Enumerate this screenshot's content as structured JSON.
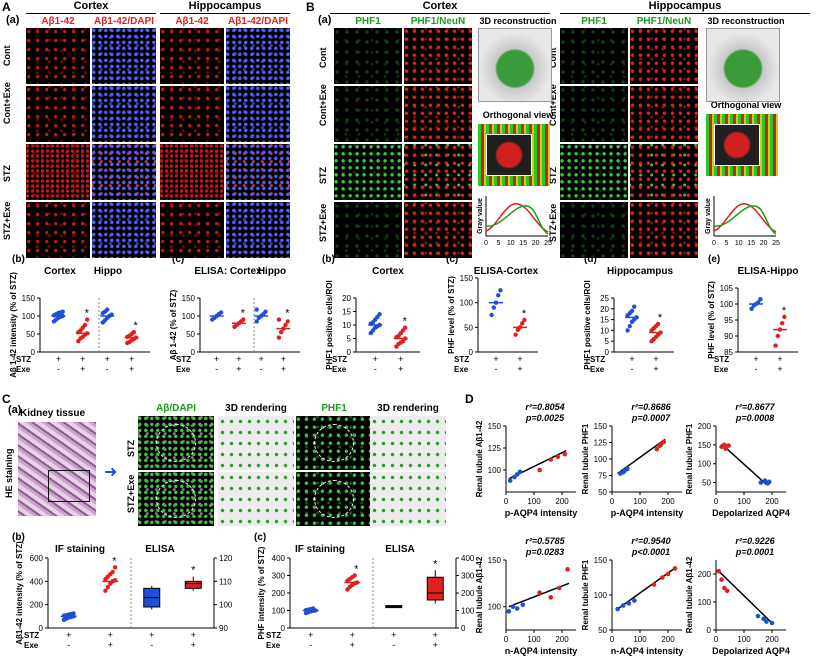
{
  "panel_A": {
    "letter": "A",
    "sub": "(a)",
    "region_cortex": "Cortex",
    "region_hippo": "Hippocampus",
    "col_titles": [
      "Aβ1-42",
      "Aβ1-42/DAPI",
      "Aβ1-42",
      "Aβ1-42/DAPI"
    ],
    "row_labels": [
      "Cont",
      "Cont+Exe",
      "STZ",
      "STZ+Exe"
    ]
  },
  "panel_B": {
    "letter": "B",
    "sub": "(a)",
    "region_cortex": "Cortex",
    "region_hippo": "Hippocampus",
    "col_titles": [
      "PHF1",
      "PHF1/NeuN",
      "PHF1",
      "PHF1/NeuN"
    ],
    "recon_title": "3D reconstruction",
    "ortho_title": "Orthogonal view",
    "row_labels": [
      "Cont",
      "Cont+Exe",
      "STZ",
      "STZ+Exe"
    ],
    "gray_label": "Gray value",
    "gray_ticks": [
      "0",
      "5",
      "10",
      "15",
      "20",
      "25"
    ]
  },
  "panel_C": {
    "letter": "C",
    "sub": "(a)",
    "kidney_label": "Kidney tissue",
    "he_label": "HE staining",
    "col_titles": [
      "Aβ/DAPI",
      "3D rendering",
      "PHF1",
      "3D rendering"
    ],
    "row_labels": [
      "STZ",
      "STZ+Exe"
    ]
  },
  "panel_D": {
    "letter": "D"
  },
  "group_rows": {
    "stz": "STZ",
    "exe": "Exe",
    "plus": "+",
    "minus": "-"
  },
  "chart_data": [
    {
      "id": "Ab_b",
      "type": "scatter",
      "panel": "(b)",
      "headers": [
        "Cortex",
        "Hippo"
      ],
      "ylabel": "Aβ 1-42 intensity (% of STZ)",
      "ylim": [
        0,
        150
      ],
      "yticks": [
        "0",
        "50",
        "100",
        "150"
      ],
      "groups": [
        {
          "stz": "+",
          "exe": "-",
          "color": "#1f4fd6",
          "mean": 100,
          "points": [
            85,
            90,
            95,
            98,
            100,
            102,
            105,
            108,
            110,
            112
          ]
        },
        {
          "stz": "+",
          "exe": "+",
          "color": "#e02020",
          "mean": 52,
          "points": [
            30,
            38,
            42,
            48,
            52,
            55,
            60,
            68,
            75,
            90
          ],
          "star": true
        },
        {
          "stz": "+",
          "exe": "-",
          "color": "#1f4fd6",
          "mean": 100,
          "points": [
            82,
            88,
            95,
            100,
            104,
            108,
            112,
            118
          ]
        },
        {
          "stz": "+",
          "exe": "+",
          "color": "#e02020",
          "mean": 40,
          "points": [
            25,
            28,
            32,
            36,
            40,
            42,
            45,
            50,
            55
          ],
          "star": true
        }
      ]
    },
    {
      "id": "Ab_c",
      "type": "scatter",
      "panel": "(c)",
      "headers": [
        "ELISA: Cortex",
        "Hippo"
      ],
      "ylabel": "Aβ 1-42 (% of STZ)",
      "ylim": [
        0,
        150
      ],
      "yticks": [
        "0",
        "50",
        "100",
        "150"
      ],
      "groups": [
        {
          "stz": "+",
          "exe": "-",
          "color": "#1f4fd6",
          "mean": 100,
          "points": [
            90,
            95,
            100,
            105,
            110
          ]
        },
        {
          "stz": "+",
          "exe": "+",
          "color": "#e02020",
          "mean": 80,
          "points": [
            70,
            75,
            80,
            85,
            90
          ],
          "star": true
        },
        {
          "stz": "+",
          "exe": "-",
          "color": "#1f4fd6",
          "mean": 100,
          "points": [
            85,
            95,
            100,
            105,
            112,
            118
          ]
        },
        {
          "stz": "+",
          "exe": "+",
          "color": "#e02020",
          "mean": 65,
          "points": [
            40,
            55,
            65,
            75,
            85,
            90
          ],
          "star": true
        }
      ]
    },
    {
      "id": "PHF_b",
      "type": "scatter",
      "panel": "(b)",
      "headers": [
        "Cortex"
      ],
      "ylabel": "PHF1 positive cells/ROI",
      "ylim": [
        0,
        20
      ],
      "yticks": [
        "0",
        "5",
        "10",
        "15",
        "20"
      ],
      "groups": [
        {
          "stz": "+",
          "exe": "-",
          "color": "#1f4fd6",
          "mean": 10,
          "points": [
            7,
            8,
            9,
            9.5,
            10,
            10.5,
            11,
            12,
            13,
            14
          ]
        },
        {
          "stz": "+",
          "exe": "+",
          "color": "#e02020",
          "mean": 5,
          "points": [
            2,
            3,
            3.5,
            4,
            5,
            5.5,
            6,
            7,
            8,
            9
          ],
          "star": true
        }
      ]
    },
    {
      "id": "PHF_c",
      "type": "scatter",
      "panel": "(c)",
      "headers": [
        "ELISA-Cortex"
      ],
      "ylabel": "PHF level (% of STZ)",
      "ylim": [
        0,
        150
      ],
      "yticks": [
        "0",
        "50",
        "100",
        "150"
      ],
      "groups": [
        {
          "stz": "+",
          "exe": "-",
          "color": "#1f4fd6",
          "mean": 100,
          "points": [
            75,
            90,
            100,
            115,
            125
          ]
        },
        {
          "stz": "+",
          "exe": "+",
          "color": "#e02020",
          "mean": 50,
          "points": [
            35,
            45,
            50,
            58,
            65
          ],
          "star": true
        }
      ]
    },
    {
      "id": "PHF_d",
      "type": "scatter",
      "panel": "(d)",
      "headers": [
        "Hippocampus"
      ],
      "ylabel": "PHF1 positive cells/ROI",
      "ylim": [
        0,
        25
      ],
      "yticks": [
        "0",
        "5",
        "10",
        "15",
        "20",
        "25"
      ],
      "groups": [
        {
          "stz": "+",
          "exe": "-",
          "color": "#1f4fd6",
          "mean": 16,
          "points": [
            10,
            12,
            14,
            15,
            16,
            17,
            18,
            19,
            21
          ]
        },
        {
          "stz": "+",
          "exe": "+",
          "color": "#e02020",
          "mean": 9,
          "points": [
            5,
            6,
            7,
            8,
            9,
            10,
            11,
            12,
            13
          ],
          "star": true
        }
      ]
    },
    {
      "id": "PHF_e",
      "type": "scatter",
      "panel": "(e)",
      "headers": [
        "ELISA-Hippo"
      ],
      "ylabel": "PHF level (% of STZ)",
      "ylim": [
        85,
        105
      ],
      "yticks": [
        "85",
        "90",
        "95",
        "100",
        "105"
      ],
      "groups": [
        {
          "stz": "+",
          "exe": "-",
          "color": "#1f4fd6",
          "mean": 100,
          "points": [
            98.5,
            99.5,
            100,
            100.5,
            101.5
          ]
        },
        {
          "stz": "+",
          "exe": "+",
          "color": "#e02020",
          "mean": 92,
          "points": [
            87,
            90,
            92,
            94,
            96
          ],
          "star": true
        }
      ]
    },
    {
      "id": "C_b",
      "type": "scatter+box",
      "panel": "(b)",
      "headers": [
        "IF staining",
        "ELISA"
      ],
      "ylabel": "Aβ1-42 intensity (% of STZ)",
      "ylim": [
        0,
        600
      ],
      "yticks": [
        "0",
        "200",
        "400",
        "600"
      ],
      "y2lim": [
        90,
        120
      ],
      "y2ticks": [
        "90",
        "100",
        "110",
        "120"
      ],
      "scatter": [
        {
          "stz": "+",
          "exe": "-",
          "color": "#1f4fd6",
          "mean": 100,
          "points": [
            70,
            80,
            90,
            95,
            100,
            105,
            110,
            115,
            120,
            125
          ]
        },
        {
          "stz": "+",
          "exe": "+",
          "color": "#e02020",
          "mean": 400,
          "points": [
            320,
            350,
            380,
            400,
            410,
            420,
            440,
            460,
            480,
            520
          ],
          "star": true
        }
      ],
      "boxes": [
        {
          "stz": "+",
          "exe": "-",
          "color": "#1f4fd6",
          "min": 98,
          "q1": 99,
          "median": 103,
          "q3": 107,
          "max": 108
        },
        {
          "stz": "+",
          "exe": "+",
          "color": "#e02020",
          "min": 106,
          "q1": 107,
          "median": 109,
          "q3": 110,
          "max": 112,
          "star": true
        }
      ]
    },
    {
      "id": "C_c",
      "type": "scatter+box",
      "panel": "(c)",
      "headers": [
        "IF staining",
        "ELISA"
      ],
      "ylabel": "PHF intensity (% of STZ)",
      "ylim": [
        0,
        400
      ],
      "yticks": [
        "0",
        "100",
        "200",
        "300",
        "400"
      ],
      "y2lim": [
        0,
        400
      ],
      "y2ticks": [
        "0",
        "100",
        "200",
        "300",
        "400"
      ],
      "scatter": [
        {
          "stz": "+",
          "exe": "-",
          "color": "#1f4fd6",
          "mean": 100,
          "points": [
            85,
            90,
            95,
            98,
            100,
            102,
            105,
            108,
            112
          ]
        },
        {
          "stz": "+",
          "exe": "+",
          "color": "#e02020",
          "mean": 260,
          "points": [
            220,
            235,
            245,
            255,
            260,
            270,
            280,
            290,
            300
          ],
          "star": true
        }
      ],
      "boxes": [
        {
          "stz": "+",
          "exe": "-",
          "color": "#1f4fd6",
          "min": 115,
          "q1": 118,
          "median": 122,
          "q3": 128,
          "max": 132
        },
        {
          "stz": "+",
          "exe": "+",
          "color": "#e02020",
          "min": 140,
          "q1": 160,
          "median": 200,
          "q3": 290,
          "max": 330,
          "star": true
        }
      ]
    },
    {
      "id": "D1",
      "type": "scatter",
      "r2": "r²=0.8054",
      "p": "p=0.0025",
      "xlabel": "p-AQP4 intensity",
      "ylabel": "Renal tubule Aβ1-42",
      "xlim": [
        0,
        250
      ],
      "ylim": [
        75,
        150
      ],
      "xticks": [
        "0",
        "100",
        "200"
      ],
      "yticks": [
        "100",
        "125",
        "150"
      ],
      "line": [
        [
          10,
          90
        ],
        [
          215,
          122
        ]
      ],
      "points_blue": [
        [
          15,
          88
        ],
        [
          30,
          92
        ],
        [
          40,
          95
        ],
        [
          50,
          98
        ]
      ],
      "points_red": [
        [
          120,
          100
        ],
        [
          160,
          112
        ],
        [
          185,
          115
        ],
        [
          210,
          118
        ]
      ]
    },
    {
      "id": "D2",
      "type": "scatter",
      "r2": "r²=0.8686",
      "p": "p=0.0007",
      "xlabel": "p-AQP4 intensity",
      "ylabel": "Renal tubule PHF1",
      "xlim": [
        0,
        250
      ],
      "ylim": [
        50,
        150
      ],
      "xticks": [
        "0",
        "100",
        "200"
      ],
      "yticks": [
        "50",
        "75",
        "100",
        "125",
        "150"
      ],
      "line": [
        [
          20,
          78
        ],
        [
          190,
          130
        ]
      ],
      "points_blue": [
        [
          30,
          78
        ],
        [
          40,
          80
        ],
        [
          45,
          82
        ],
        [
          55,
          85
        ]
      ],
      "points_red": [
        [
          160,
          115
        ],
        [
          170,
          120
        ],
        [
          175,
          122
        ],
        [
          185,
          126
        ]
      ]
    },
    {
      "id": "D3",
      "type": "scatter",
      "r2": "r²=0.8677",
      "p": "p=0.0008",
      "xlabel": "Depolarized AQP4",
      "ylabel": "Renal tubule PHF1",
      "xlim": [
        0,
        250
      ],
      "ylim": [
        25,
        200
      ],
      "xticks": [
        "0",
        "100",
        "200"
      ],
      "yticks": [
        "50",
        "100",
        "150",
        "200"
      ],
      "line": [
        [
          20,
          152
        ],
        [
          180,
          45
        ]
      ],
      "points_blue": [
        [
          160,
          50
        ],
        [
          175,
          55
        ],
        [
          185,
          48
        ],
        [
          190,
          52
        ]
      ],
      "points_red": [
        [
          20,
          145
        ],
        [
          30,
          150
        ],
        [
          35,
          140
        ],
        [
          45,
          148
        ]
      ]
    },
    {
      "id": "D4",
      "type": "scatter",
      "r2": "r²=0.5785",
      "p": "p=0.0283",
      "xlabel": "n-AQP4 intensity",
      "ylabel": "Renal tubule Aβ1-42",
      "xlim": [
        0,
        250
      ],
      "ylim": [
        75,
        150
      ],
      "xticks": [
        "0",
        "100",
        "200"
      ],
      "yticks": [
        "100",
        "150"
      ],
      "line": [
        [
          10,
          100
        ],
        [
          225,
          125
        ]
      ],
      "points_blue": [
        [
          10,
          95
        ],
        [
          25,
          100
        ],
        [
          40,
          98
        ],
        [
          60,
          102
        ]
      ],
      "points_red": [
        [
          120,
          115
        ],
        [
          160,
          110
        ],
        [
          190,
          120
        ],
        [
          220,
          140
        ]
      ]
    },
    {
      "id": "D5",
      "type": "scatter",
      "r2": "r²=0.9540",
      "p": "p<0.0001",
      "xlabel": "n-AQP4 intensity",
      "ylabel": "Renal tubule PHF1",
      "xlim": [
        0,
        250
      ],
      "ylim": [
        50,
        150
      ],
      "xticks": [
        "0",
        "100",
        "200"
      ],
      "yticks": [
        "50",
        "100",
        "150"
      ],
      "line": [
        [
          20,
          80
        ],
        [
          230,
          140
        ]
      ],
      "points_blue": [
        [
          20,
          80
        ],
        [
          40,
          85
        ],
        [
          60,
          88
        ],
        [
          80,
          92
        ]
      ],
      "points_red": [
        [
          150,
          115
        ],
        [
          180,
          125
        ],
        [
          200,
          130
        ],
        [
          225,
          138
        ]
      ]
    },
    {
      "id": "D6",
      "type": "scatter",
      "r2": "r²=0.9226",
      "p": "p=0.0001",
      "xlabel": "Depolarized AQP4",
      "ylabel": "Renal tubule Aβ1-42",
      "xlim": [
        0,
        250
      ],
      "ylim": [
        0,
        250
      ],
      "xticks": [
        "0",
        "100",
        "200"
      ],
      "yticks": [
        "0",
        "100",
        "200"
      ],
      "line": [
        [
          10,
          210
        ],
        [
          200,
          25
        ]
      ],
      "points_blue": [
        [
          150,
          50
        ],
        [
          170,
          40
        ],
        [
          180,
          30
        ],
        [
          200,
          25
        ]
      ],
      "points_red": [
        [
          10,
          210
        ],
        [
          20,
          180
        ],
        [
          30,
          150
        ],
        [
          40,
          140
        ]
      ]
    }
  ]
}
